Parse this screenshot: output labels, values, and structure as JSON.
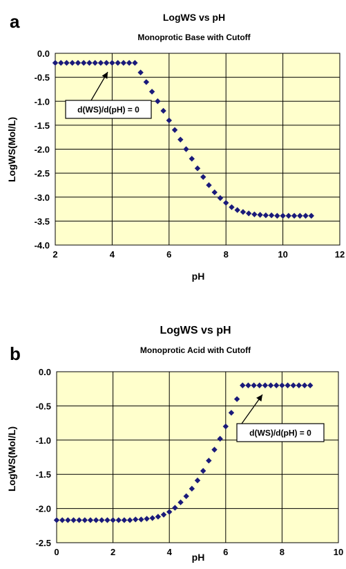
{
  "chart_data": [
    {
      "panel": "a",
      "type": "scatter",
      "title": "LogWS vs pH",
      "subtitle": "Monoprotic Base with Cutoff",
      "xlabel": "pH",
      "ylabel": "LogWS(Mol/L)",
      "xlim": [
        2,
        12
      ],
      "ylim": [
        -4.0,
        0.0
      ],
      "xticks": [
        "2",
        "4",
        "6",
        "8",
        "10",
        "12"
      ],
      "yticks": [
        "0.0",
        "-0.5",
        "-1.0",
        "-1.5",
        "-2.0",
        "-2.5",
        "-3.0",
        "-3.5",
        "-4.0"
      ],
      "grid": true,
      "legend": "none",
      "background": "#ffffcc",
      "marker_color": "#1a1a7a",
      "annotation": "d(WS)/d(pH) = 0",
      "x": [
        2.0,
        2.2,
        2.4,
        2.6,
        2.8,
        3.0,
        3.2,
        3.4,
        3.6,
        3.8,
        4.0,
        4.2,
        4.4,
        4.6,
        4.8,
        5.0,
        5.2,
        5.4,
        5.6,
        5.8,
        6.0,
        6.2,
        6.4,
        6.6,
        6.8,
        7.0,
        7.2,
        7.4,
        7.6,
        7.8,
        8.0,
        8.2,
        8.4,
        8.6,
        8.8,
        9.0,
        9.2,
        9.4,
        9.6,
        9.8,
        10.0,
        10.2,
        10.4,
        10.6,
        10.8,
        11.0
      ],
      "y": [
        -0.2,
        -0.2,
        -0.2,
        -0.2,
        -0.2,
        -0.2,
        -0.2,
        -0.2,
        -0.2,
        -0.2,
        -0.2,
        -0.2,
        -0.2,
        -0.2,
        -0.2,
        -0.4,
        -0.6,
        -0.8,
        -1.0,
        -1.2,
        -1.4,
        -1.6,
        -1.8,
        -2.0,
        -2.2,
        -2.4,
        -2.58,
        -2.75,
        -2.9,
        -3.02,
        -3.12,
        -3.21,
        -3.27,
        -3.31,
        -3.34,
        -3.36,
        -3.37,
        -3.38,
        -3.38,
        -3.39,
        -3.39,
        -3.39,
        -3.39,
        -3.39,
        -3.39,
        -3.39
      ]
    },
    {
      "panel": "b",
      "type": "scatter",
      "title": "LogWS vs pH",
      "subtitle": "Monoprotic Acid with Cutoff",
      "xlabel": "pH",
      "ylabel": "LogWS(Mol/L)",
      "xlim": [
        0,
        10
      ],
      "ylim": [
        -2.5,
        0.0
      ],
      "xticks": [
        "0",
        "2",
        "4",
        "6",
        "8",
        "10"
      ],
      "yticks": [
        "0.0",
        "-0.5",
        "-1.0",
        "-1.5",
        "-2.0",
        "-2.5"
      ],
      "grid": true,
      "legend": "none",
      "background": "#ffffcc",
      "marker_color": "#1a1a7a",
      "annotation": "d(WS)/d(pH) = 0",
      "x": [
        0.0,
        0.2,
        0.4,
        0.6,
        0.8,
        1.0,
        1.2,
        1.4,
        1.6,
        1.8,
        2.0,
        2.2,
        2.4,
        2.6,
        2.8,
        3.0,
        3.2,
        3.4,
        3.6,
        3.8,
        4.0,
        4.2,
        4.4,
        4.6,
        4.8,
        5.0,
        5.2,
        5.4,
        5.6,
        5.8,
        6.0,
        6.2,
        6.4,
        6.6,
        6.8,
        7.0,
        7.2,
        7.4,
        7.6,
        7.8,
        8.0,
        8.2,
        8.4,
        8.6,
        8.8,
        9.0
      ],
      "y": [
        -2.17,
        -2.17,
        -2.17,
        -2.17,
        -2.17,
        -2.17,
        -2.17,
        -2.17,
        -2.17,
        -2.17,
        -2.17,
        -2.17,
        -2.17,
        -2.17,
        -2.16,
        -2.16,
        -2.15,
        -2.14,
        -2.12,
        -2.09,
        -2.05,
        -1.99,
        -1.91,
        -1.82,
        -1.71,
        -1.59,
        -1.45,
        -1.3,
        -1.14,
        -0.98,
        -0.8,
        -0.6,
        -0.4,
        -0.2,
        -0.2,
        -0.2,
        -0.2,
        -0.2,
        -0.2,
        -0.2,
        -0.2,
        -0.2,
        -0.2,
        -0.2,
        -0.2,
        -0.2
      ]
    }
  ]
}
